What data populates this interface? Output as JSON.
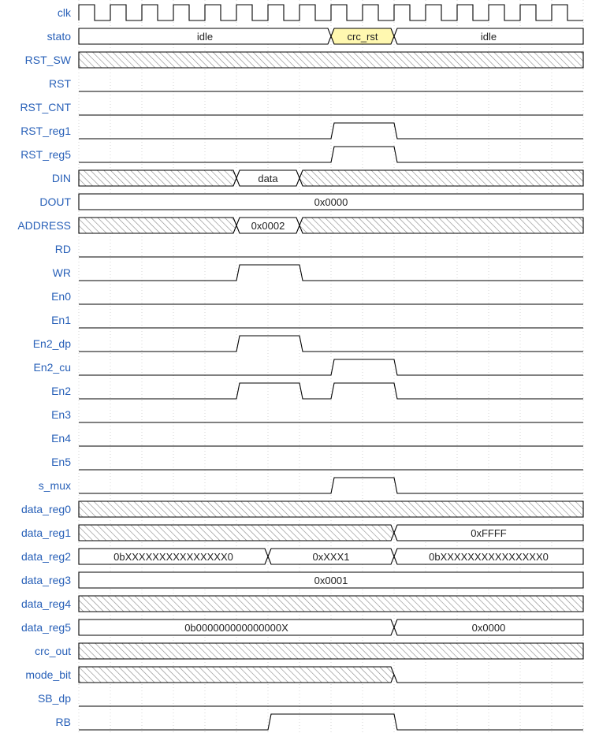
{
  "diagram": {
    "title": "",
    "colors": {
      "label": "#2860b8",
      "line": "#000000",
      "hatch": "#888888",
      "highlight": "#fff8b0",
      "bus_fill": "#ffffff"
    },
    "period_count": 16,
    "signals": [
      {
        "name": "clk",
        "type": "clock"
      },
      {
        "name": "stato",
        "type": "bus",
        "segments": [
          {
            "from": 0,
            "to": 8,
            "value": "idle"
          },
          {
            "from": 8,
            "to": 10,
            "value": "crc_rst",
            "highlight": true
          },
          {
            "from": 10,
            "to": 16,
            "value": "idle"
          }
        ]
      },
      {
        "name": "RST_SW",
        "type": "bus",
        "segments": [
          {
            "from": 0,
            "to": 16,
            "hatch": true
          }
        ]
      },
      {
        "name": "RST",
        "type": "bit",
        "levels": [
          0,
          0,
          0,
          0,
          0,
          0,
          0,
          0,
          0,
          0,
          0,
          0,
          0,
          0,
          0,
          0
        ]
      },
      {
        "name": "RST_CNT",
        "type": "bit",
        "levels": [
          0,
          0,
          0,
          0,
          0,
          0,
          0,
          0,
          0,
          0,
          0,
          0,
          0,
          0,
          0,
          0
        ]
      },
      {
        "name": "RST_reg1",
        "type": "bit",
        "levels": [
          0,
          0,
          0,
          0,
          0,
          0,
          0,
          0,
          1,
          1,
          0,
          0,
          0,
          0,
          0,
          0
        ]
      },
      {
        "name": "RST_reg5",
        "type": "bit",
        "levels": [
          0,
          0,
          0,
          0,
          0,
          0,
          0,
          0,
          1,
          1,
          0,
          0,
          0,
          0,
          0,
          0
        ]
      },
      {
        "name": "DIN",
        "type": "bus",
        "segments": [
          {
            "from": 0,
            "to": 5,
            "hatch": true
          },
          {
            "from": 5,
            "to": 7,
            "value": "data"
          },
          {
            "from": 7,
            "to": 16,
            "hatch": true
          }
        ]
      },
      {
        "name": "DOUT",
        "type": "bus",
        "segments": [
          {
            "from": 0,
            "to": 16,
            "value": "0x0000"
          }
        ]
      },
      {
        "name": "ADDRESS",
        "type": "bus",
        "segments": [
          {
            "from": 0,
            "to": 5,
            "hatch": true
          },
          {
            "from": 5,
            "to": 7,
            "value": "0x0002"
          },
          {
            "from": 7,
            "to": 16,
            "hatch": true
          }
        ]
      },
      {
        "name": "RD",
        "type": "bit",
        "levels": [
          0,
          0,
          0,
          0,
          0,
          0,
          0,
          0,
          0,
          0,
          0,
          0,
          0,
          0,
          0,
          0
        ]
      },
      {
        "name": "WR",
        "type": "bit",
        "levels": [
          0,
          0,
          0,
          0,
          0,
          1,
          1,
          0,
          0,
          0,
          0,
          0,
          0,
          0,
          0,
          0
        ]
      },
      {
        "name": "En0",
        "type": "bit",
        "levels": [
          0,
          0,
          0,
          0,
          0,
          0,
          0,
          0,
          0,
          0,
          0,
          0,
          0,
          0,
          0,
          0
        ]
      },
      {
        "name": "En1",
        "type": "bit",
        "levels": [
          0,
          0,
          0,
          0,
          0,
          0,
          0,
          0,
          0,
          0,
          0,
          0,
          0,
          0,
          0,
          0
        ]
      },
      {
        "name": "En2_dp",
        "type": "bit",
        "levels": [
          0,
          0,
          0,
          0,
          0,
          1,
          1,
          0,
          0,
          0,
          0,
          0,
          0,
          0,
          0,
          0
        ]
      },
      {
        "name": "En2_cu",
        "type": "bit",
        "levels": [
          0,
          0,
          0,
          0,
          0,
          0,
          0,
          0,
          1,
          1,
          0,
          0,
          0,
          0,
          0,
          0
        ]
      },
      {
        "name": "En2",
        "type": "bit",
        "levels": [
          0,
          0,
          0,
          0,
          0,
          1,
          1,
          0,
          1,
          1,
          0,
          0,
          0,
          0,
          0,
          0
        ]
      },
      {
        "name": "En3",
        "type": "bit",
        "levels": [
          0,
          0,
          0,
          0,
          0,
          0,
          0,
          0,
          0,
          0,
          0,
          0,
          0,
          0,
          0,
          0
        ]
      },
      {
        "name": "En4",
        "type": "bit",
        "levels": [
          0,
          0,
          0,
          0,
          0,
          0,
          0,
          0,
          0,
          0,
          0,
          0,
          0,
          0,
          0,
          0
        ]
      },
      {
        "name": "En5",
        "type": "bit",
        "levels": [
          0,
          0,
          0,
          0,
          0,
          0,
          0,
          0,
          0,
          0,
          0,
          0,
          0,
          0,
          0,
          0
        ]
      },
      {
        "name": "s_mux",
        "type": "bit",
        "levels": [
          0,
          0,
          0,
          0,
          0,
          0,
          0,
          0,
          1,
          1,
          0,
          0,
          0,
          0,
          0,
          0
        ]
      },
      {
        "name": "data_reg0",
        "type": "bus",
        "segments": [
          {
            "from": 0,
            "to": 16,
            "hatch": true
          }
        ]
      },
      {
        "name": "data_reg1",
        "type": "bus",
        "segments": [
          {
            "from": 0,
            "to": 10,
            "hatch": true
          },
          {
            "from": 10,
            "to": 16,
            "value": "0xFFFF"
          }
        ]
      },
      {
        "name": "data_reg2",
        "type": "bus",
        "segments": [
          {
            "from": 0,
            "to": 6,
            "value": "0bXXXXXXXXXXXXXXX0"
          },
          {
            "from": 6,
            "to": 10,
            "value": "0xXXX1"
          },
          {
            "from": 10,
            "to": 16,
            "value": "0bXXXXXXXXXXXXXXX0"
          }
        ]
      },
      {
        "name": "data_reg3",
        "type": "bus",
        "segments": [
          {
            "from": 0,
            "to": 16,
            "value": "0x0001"
          }
        ]
      },
      {
        "name": "data_reg4",
        "type": "bus",
        "segments": [
          {
            "from": 0,
            "to": 16,
            "hatch": true
          }
        ]
      },
      {
        "name": "data_reg5",
        "type": "bus",
        "segments": [
          {
            "from": 0,
            "to": 10,
            "value": "0b000000000000000X"
          },
          {
            "from": 10,
            "to": 16,
            "value": "0x0000"
          }
        ]
      },
      {
        "name": "crc_out",
        "type": "bus",
        "segments": [
          {
            "from": 0,
            "to": 16,
            "hatch": true
          }
        ]
      },
      {
        "name": "mode_bit",
        "type": "bus",
        "segments": [
          {
            "from": 0,
            "to": 10,
            "hatch": true
          },
          {
            "from": 10,
            "to": 16,
            "blank": true
          }
        ]
      },
      {
        "name": "SB_dp",
        "type": "bit",
        "levels": [
          0,
          0,
          0,
          0,
          0,
          0,
          0,
          0,
          0,
          0,
          0,
          0,
          0,
          0,
          0,
          0
        ]
      },
      {
        "name": "RB",
        "type": "bit",
        "levels": [
          0,
          0,
          0,
          0,
          0,
          0,
          1,
          1,
          1,
          1,
          0,
          0,
          0,
          0,
          0,
          0
        ]
      }
    ]
  }
}
